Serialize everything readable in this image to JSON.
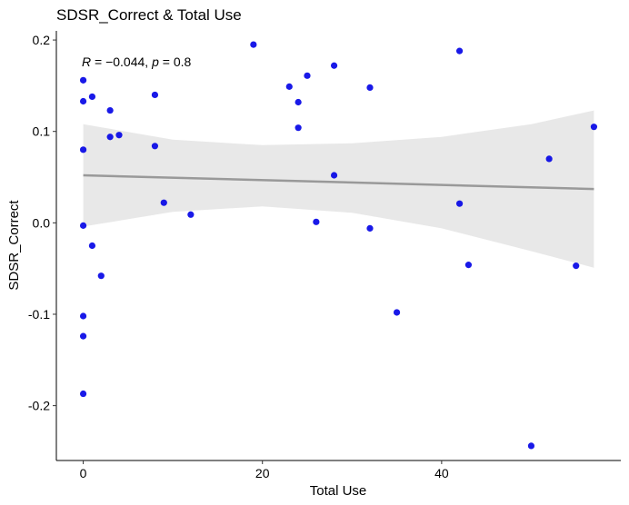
{
  "chart_data": {
    "type": "scatter",
    "title": "SDSR_Correct & Total Use",
    "xlabel": "Total Use",
    "ylabel": "SDSR_Correct",
    "xlim": [
      -3,
      60
    ],
    "ylim": [
      -0.26,
      0.21
    ],
    "x_ticks": [
      0,
      20,
      40
    ],
    "y_ticks": [
      0.2,
      0.1,
      0.0,
      -0.1,
      -0.2
    ],
    "y_tick_labels": [
      "0.2",
      "0.1",
      "0.0",
      "-0.1",
      "-0.2"
    ],
    "grid": false,
    "point_color": "#0000e6",
    "trend_color": "#999999",
    "band_color": "#e8e8e8",
    "annotation": {
      "r_symbol": "R",
      "r_text": " = −0.044, ",
      "p_symbol": "p",
      "p_text": " = 0.8"
    },
    "points": [
      {
        "x": 0,
        "y": 0.156
      },
      {
        "x": 0,
        "y": 0.133
      },
      {
        "x": 0,
        "y": 0.08
      },
      {
        "x": 0,
        "y": -0.003
      },
      {
        "x": 0,
        "y": -0.102
      },
      {
        "x": 0,
        "y": -0.124
      },
      {
        "x": 0,
        "y": -0.187
      },
      {
        "x": 1,
        "y": 0.138
      },
      {
        "x": 1,
        "y": -0.025
      },
      {
        "x": 2,
        "y": -0.058
      },
      {
        "x": 3,
        "y": 0.123
      },
      {
        "x": 3,
        "y": 0.094
      },
      {
        "x": 4,
        "y": 0.096
      },
      {
        "x": 8,
        "y": 0.14
      },
      {
        "x": 8,
        "y": 0.084
      },
      {
        "x": 9,
        "y": 0.022
      },
      {
        "x": 12,
        "y": 0.009
      },
      {
        "x": 19,
        "y": 0.195
      },
      {
        "x": 23,
        "y": 0.149
      },
      {
        "x": 24,
        "y": 0.132
      },
      {
        "x": 24,
        "y": 0.104
      },
      {
        "x": 25,
        "y": 0.161
      },
      {
        "x": 26,
        "y": 0.001
      },
      {
        "x": 28,
        "y": 0.172
      },
      {
        "x": 28,
        "y": 0.052
      },
      {
        "x": 32,
        "y": 0.148
      },
      {
        "x": 32,
        "y": -0.006
      },
      {
        "x": 35,
        "y": -0.098
      },
      {
        "x": 42,
        "y": 0.188
      },
      {
        "x": 42,
        "y": 0.021
      },
      {
        "x": 43,
        "y": -0.046
      },
      {
        "x": 50,
        "y": -0.244
      },
      {
        "x": 52,
        "y": 0.07
      },
      {
        "x": 55,
        "y": -0.047
      },
      {
        "x": 57,
        "y": 0.105
      }
    ],
    "trend": {
      "x": [
        0,
        57
      ],
      "y": [
        0.052,
        0.037
      ]
    },
    "band": {
      "x": [
        0,
        10,
        20,
        30,
        40,
        50,
        57
      ],
      "upper": [
        0.108,
        0.091,
        0.085,
        0.087,
        0.094,
        0.108,
        0.123
      ],
      "lower": [
        -0.004,
        0.012,
        0.018,
        0.011,
        -0.006,
        -0.031,
        -0.049
      ]
    }
  }
}
